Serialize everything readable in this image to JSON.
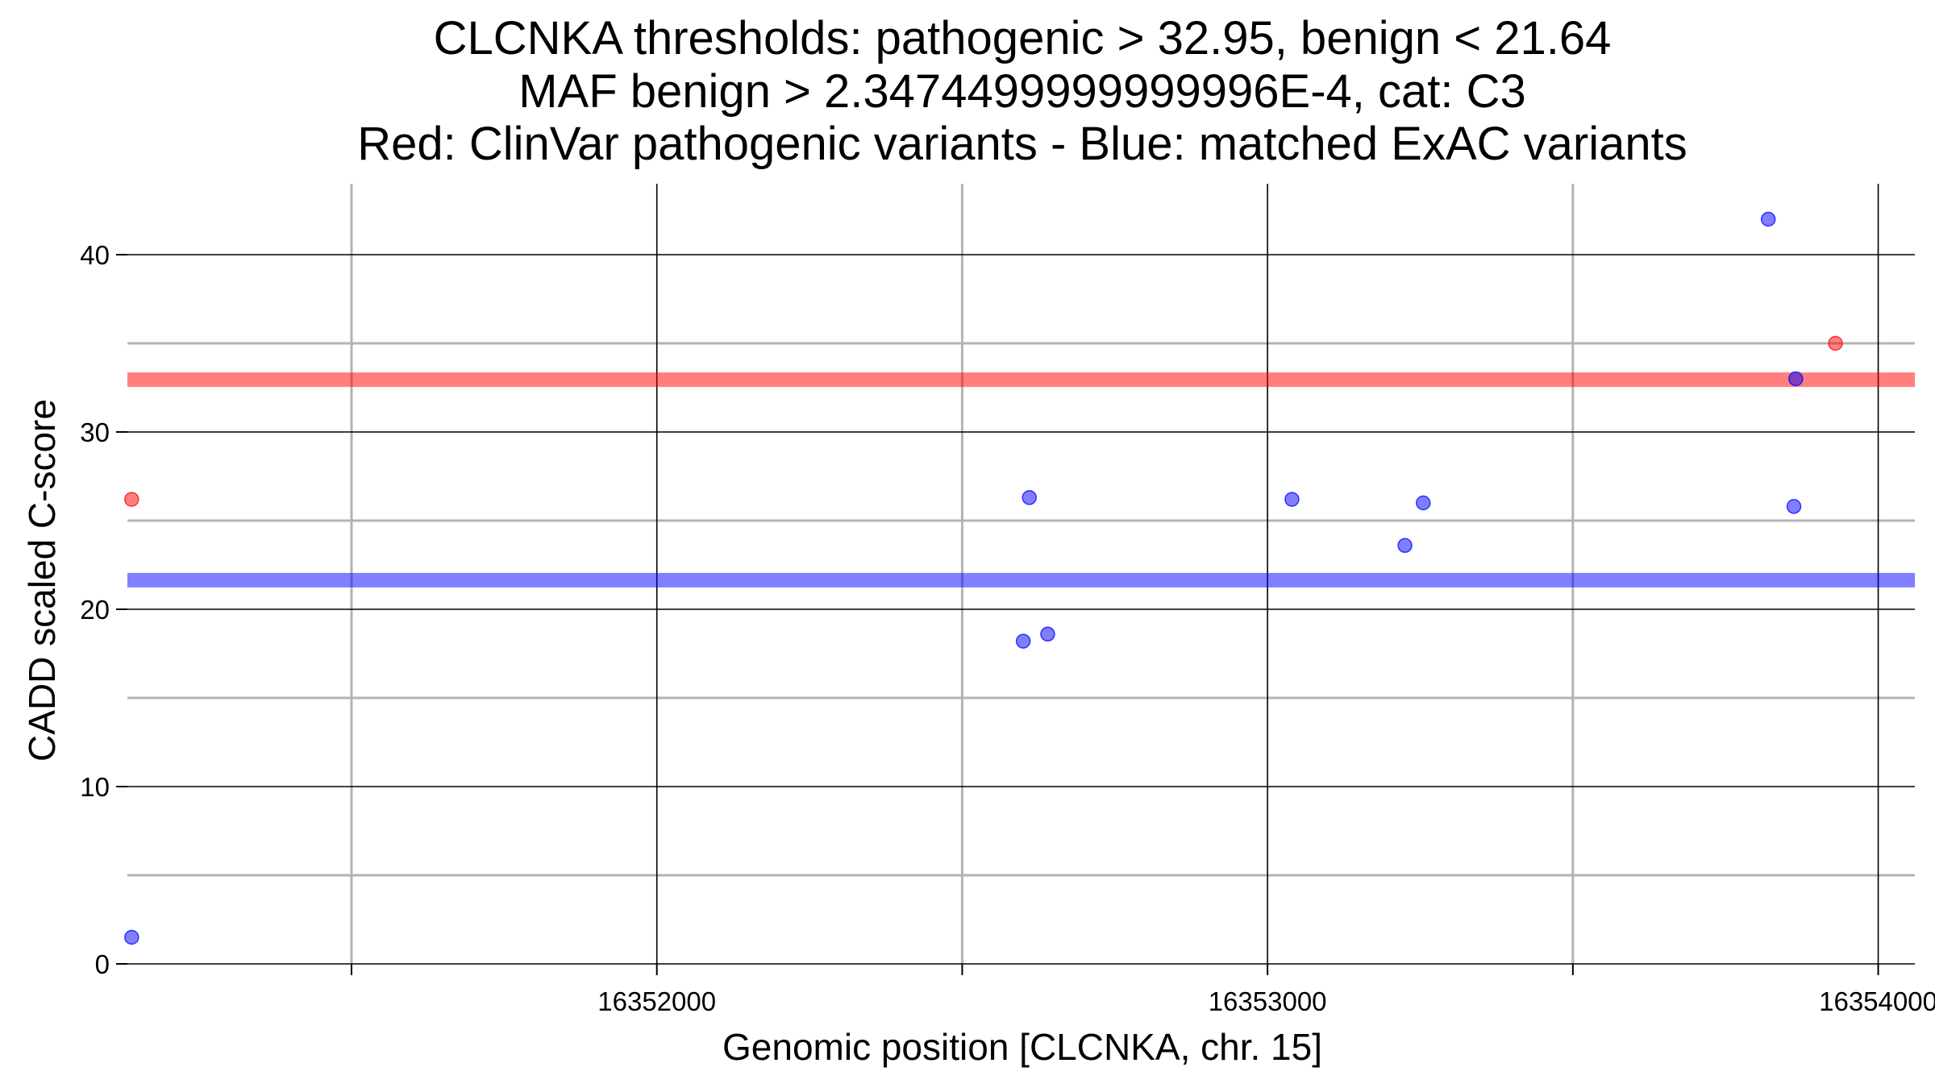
{
  "chart_data": {
    "type": "scatter",
    "title_lines": [
      "CLCNKA thresholds: pathogenic > 32.95, benign < 21.64",
      "MAF benign > 2.3474499999999996E-4, cat: C3",
      "Red: ClinVar pathogenic variants - Blue: matched ExAC variants"
    ],
    "xlabel": "Genomic position [CLCNKA, chr. 15]",
    "ylabel": "CADD scaled C-score",
    "xlim": [
      16351133,
      16354060
    ],
    "ylim": [
      0,
      44
    ],
    "x_major_ticks": [
      16352000,
      16353000,
      16354000
    ],
    "x_major_tick_labels": [
      "16352000",
      "16353000",
      "16354000"
    ],
    "x_minor_ticks": [
      16351500,
      16352500,
      16353500
    ],
    "y_major_ticks": [
      0,
      10,
      20,
      30,
      40
    ],
    "y_major_tick_labels": [
      "0",
      "10",
      "20",
      "30",
      "40"
    ],
    "y_minor_ticks": [
      5,
      15,
      25,
      35
    ],
    "grid": true,
    "thresholds": [
      {
        "name": "pathogenic",
        "value": 32.95,
        "color": "#ff0000"
      },
      {
        "name": "benign",
        "value": 21.64,
        "color": "#0000ff"
      }
    ],
    "series": [
      {
        "color": "#ff0000",
        "points": [
          {
            "x": 16351140,
            "y": 26.2
          },
          {
            "x": 16353930,
            "y": 35.0
          }
        ]
      },
      {
        "color": "#0000ff",
        "points": [
          {
            "x": 16351140,
            "y": 1.5
          },
          {
            "x": 16352600,
            "y": 18.2
          },
          {
            "x": 16352610,
            "y": 26.3
          },
          {
            "x": 16352640,
            "y": 18.6
          },
          {
            "x": 16353040,
            "y": 26.2
          },
          {
            "x": 16353225,
            "y": 23.6
          },
          {
            "x": 16353255,
            "y": 26.0
          },
          {
            "x": 16353820,
            "y": 42.0
          },
          {
            "x": 16353865,
            "y": 33.0
          },
          {
            "x": 16353862,
            "y": 25.8
          }
        ]
      }
    ]
  }
}
